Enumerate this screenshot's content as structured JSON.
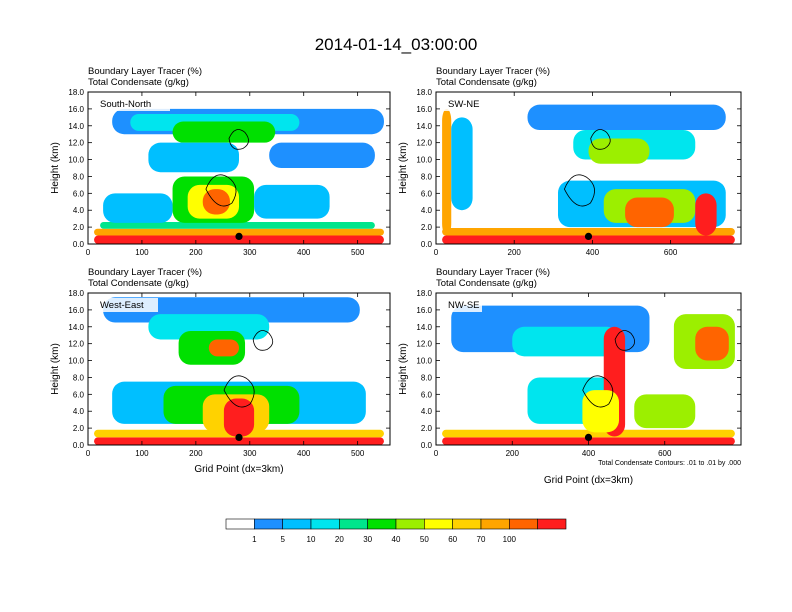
{
  "chart_data": {
    "type": "heatmap",
    "title": "2014-01-14_03:00:00",
    "shaded_variable": "Boundary Layer Tracer",
    "shaded_unit": "(%)",
    "contour_variable": "Total Condensate",
    "contour_unit": "(g/kg)",
    "ylabel": "Height (km)",
    "xlabel": "Grid Point (dx=3km)",
    "contour_note": "Total Condensate Contours: .01 to .01 by .000",
    "ylim": [
      0,
      18
    ],
    "yticks": [
      "0.0",
      "2.0",
      "4.0",
      "6.0",
      "8.0",
      "10.0",
      "12.0",
      "14.0",
      "16.0",
      "18.0"
    ],
    "panels": [
      {
        "id": "south-north",
        "label": "South-North",
        "xlim": [
          0,
          560
        ],
        "xticks": [
          "0",
          "100",
          "200",
          "300",
          "400",
          "500"
        ],
        "xtick_values": [
          0,
          100,
          200,
          300,
          400,
          500
        ],
        "marker_x": 280
      },
      {
        "id": "sw-ne",
        "label": "SW-NE",
        "xlim": [
          0,
          780
        ],
        "xticks": [
          "0",
          "200",
          "400",
          "600"
        ],
        "xtick_values": [
          0,
          200,
          400,
          600
        ],
        "marker_x": 390
      },
      {
        "id": "west-east",
        "label": "West-East",
        "xlim": [
          0,
          560
        ],
        "xticks": [
          "0",
          "100",
          "200",
          "300",
          "400",
          "500"
        ],
        "xtick_values": [
          0,
          100,
          200,
          300,
          400,
          500
        ],
        "marker_x": 280
      },
      {
        "id": "nw-se",
        "label": "NW-SE",
        "xlim": [
          0,
          800
        ],
        "xticks": [
          "0",
          "200",
          "400",
          "600"
        ],
        "xtick_values": [
          0,
          200,
          400,
          600
        ],
        "marker_x": 400
      }
    ],
    "colorbar": {
      "levels": [
        "1",
        "5",
        "10",
        "20",
        "30",
        "40",
        "50",
        "60",
        "70",
        "100"
      ],
      "colors": [
        "#ffffff",
        "#1e90ff",
        "#00bfff",
        "#00e5ee",
        "#00e58c",
        "#00e000",
        "#9cef00",
        "#ffff00",
        "#ffd200",
        "#ffa500",
        "#ff6400",
        "#ff1e1e"
      ]
    }
  }
}
